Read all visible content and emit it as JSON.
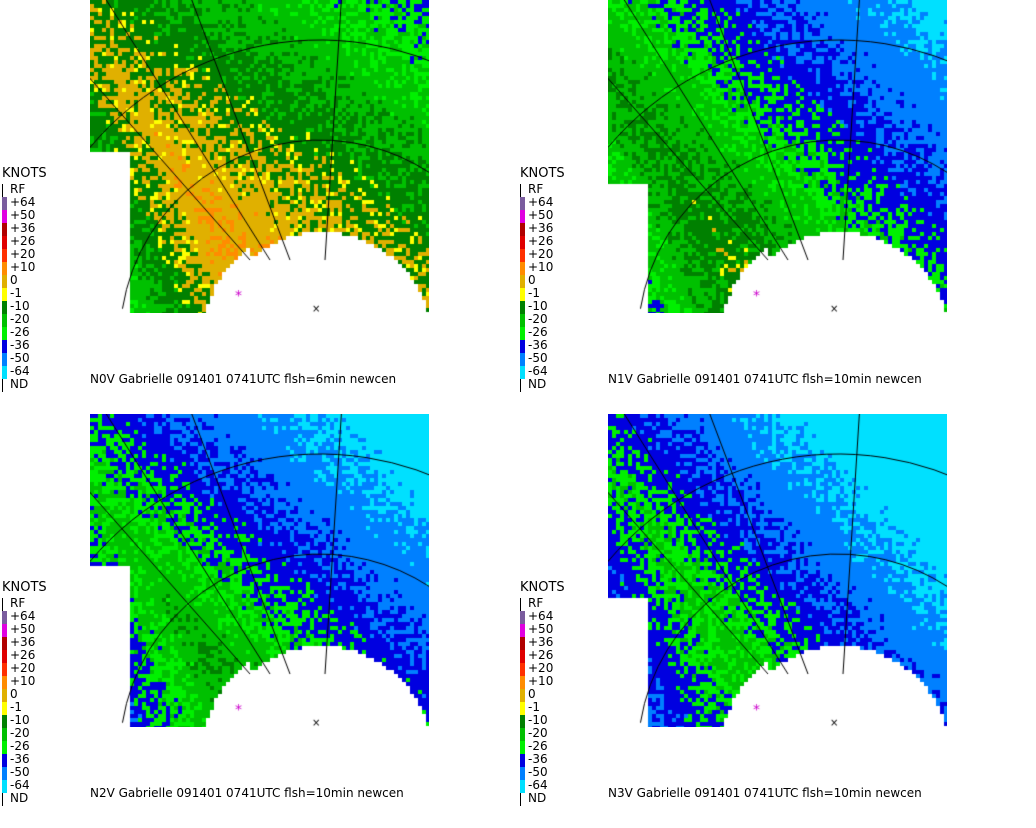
{
  "panels": [
    {
      "id": "N0V",
      "caption": "N0V Gabrielle 091401 0741UTC  flsh=6min newcen",
      "field": {
        "base": 30,
        "trend_x": -1.2,
        "trend_y": 0.9,
        "breakline": 0.52
      }
    },
    {
      "id": "N1V",
      "caption": "N1V Gabrielle 091401 0741UTC  flsh=10min newcen",
      "field": {
        "base": 18,
        "trend_x": -1.0,
        "trend_y": 0.8,
        "breakline": 0.45
      }
    },
    {
      "id": "N2V",
      "caption": "N2V Gabrielle 091401 0741UTC  flsh=10min newcen",
      "field": {
        "base": 8,
        "trend_x": -1.0,
        "trend_y": 0.7,
        "breakline": 0.48
      }
    },
    {
      "id": "N3V",
      "caption": "N3V Gabrielle 091401 0741UTC  flsh=10min newcen",
      "field": {
        "base": 0,
        "trend_x": -0.9,
        "trend_y": 0.7,
        "breakline": 0.5
      }
    }
  ],
  "legend": {
    "title": "KNOTS",
    "entries": [
      {
        "label": "RF",
        "color": "#ffffff"
      },
      {
        "label": "+64",
        "color": "#7a5c9e"
      },
      {
        "label": "+50",
        "color": "#e000e0"
      },
      {
        "label": "+36",
        "color": "#b00000"
      },
      {
        "label": "+26",
        "color": "#e00000"
      },
      {
        "label": "+20",
        "color": "#ff3000"
      },
      {
        "label": "+10",
        "color": "#ff8c00"
      },
      {
        "label": "0",
        "color": "#e0b000"
      },
      {
        "label": "-1",
        "color": "#ffff00"
      },
      {
        "label": "-10",
        "color": "#008000"
      },
      {
        "label": "-20",
        "color": "#00c000"
      },
      {
        "label": "-26",
        "color": "#00f000"
      },
      {
        "label": "-36",
        "color": "#0000e0"
      },
      {
        "label": "-50",
        "color": "#0080ff"
      },
      {
        "label": "-64",
        "color": "#00e0ff"
      },
      {
        "label": "ND",
        "color": "#ffffff"
      }
    ]
  },
  "colors": {
    "range_ring": "#000000",
    "center_marker": "#cc00cc"
  }
}
